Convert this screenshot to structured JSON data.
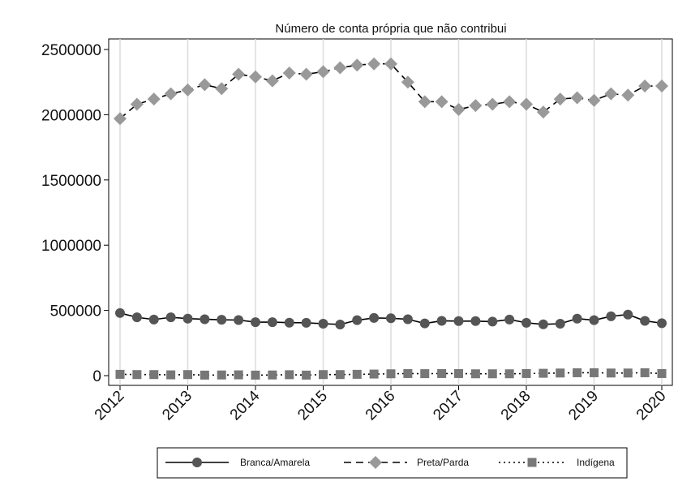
{
  "chart_data": {
    "type": "line",
    "title": "Número de conta própria que não contribui",
    "xlabel": "",
    "ylabel": "",
    "xlim": [
      2012,
      2020
    ],
    "ylim": [
      0,
      2500000
    ],
    "x_ticks": [
      "2012",
      "2013",
      "2014",
      "2015",
      "2016",
      "2017",
      "2018",
      "2019",
      "2020"
    ],
    "y_ticks": [
      "0",
      "500000",
      "1000000",
      "1500000",
      "2000000",
      "2500000"
    ],
    "grid": "vertical",
    "legend_position": "bottom",
    "x": [
      2012.0,
      2012.25,
      2012.5,
      2012.75,
      2013.0,
      2013.25,
      2013.5,
      2013.75,
      2014.0,
      2014.25,
      2014.5,
      2014.75,
      2015.0,
      2015.25,
      2015.5,
      2015.75,
      2016.0,
      2016.25,
      2016.5,
      2016.75,
      2017.0,
      2017.25,
      2017.5,
      2017.75,
      2018.0,
      2018.25,
      2018.5,
      2018.75,
      2019.0,
      2019.25,
      2019.5,
      2019.75,
      2020.0
    ],
    "series": [
      {
        "name": "Branca/Amarela",
        "color": "#555555",
        "line_style": "solid",
        "marker": "circle",
        "values": [
          480000,
          447000,
          430000,
          447000,
          437000,
          432000,
          428000,
          426000,
          410000,
          410000,
          406000,
          405000,
          398000,
          392000,
          425000,
          442000,
          440000,
          432000,
          400000,
          420000,
          418000,
          418000,
          414000,
          430000,
          405000,
          393000,
          398000,
          437000,
          425000,
          455000,
          468000,
          420000,
          402000
        ]
      },
      {
        "name": "Preta/Parda",
        "color": "#999999",
        "line_style": "dashed",
        "marker": "diamond",
        "values": [
          1970000,
          2080000,
          2120000,
          2160000,
          2190000,
          2230000,
          2200000,
          2310000,
          2290000,
          2260000,
          2320000,
          2310000,
          2330000,
          2360000,
          2380000,
          2390000,
          2390000,
          2250000,
          2100000,
          2100000,
          2040000,
          2070000,
          2080000,
          2100000,
          2080000,
          2020000,
          2120000,
          2130000,
          2110000,
          2160000,
          2150000,
          2220000,
          2220000
        ]
      },
      {
        "name": "Indígena",
        "color": "#777777",
        "line_style": "dotted",
        "marker": "square",
        "values": [
          10000,
          8000,
          8000,
          6000,
          8000,
          4000,
          5000,
          6000,
          4000,
          5000,
          7000,
          4000,
          8000,
          8000,
          10000,
          12000,
          14000,
          16000,
          15000,
          16000,
          16000,
          14000,
          14000,
          14000,
          16000,
          18000,
          20000,
          22000,
          22000,
          20000,
          20000,
          22000,
          16000
        ]
      }
    ]
  }
}
